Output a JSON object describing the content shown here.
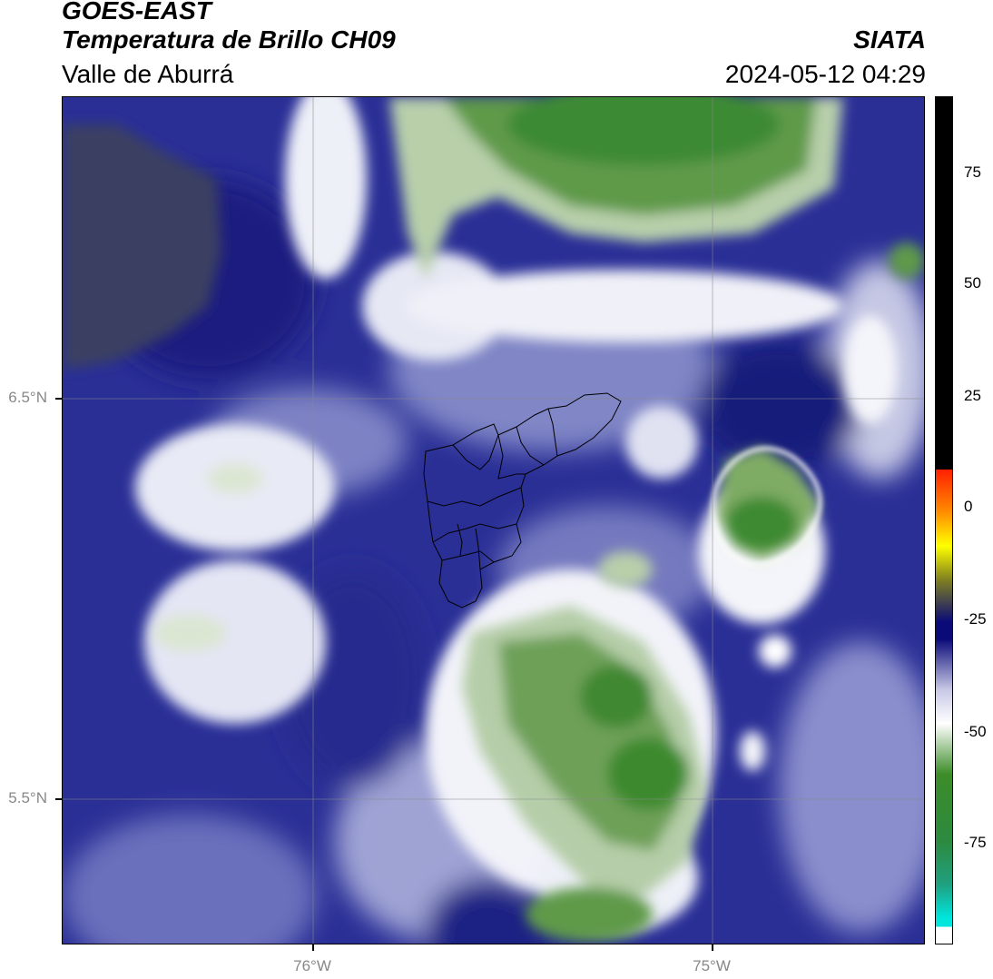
{
  "header": {
    "title_line1": "GOES-EAST",
    "title_line2": "Temperatura de Brillo CH09",
    "subtitle": "Valle de Aburrá",
    "organization": "SIATA",
    "timestamp": "2024-05-12 04:29"
  },
  "map": {
    "lat_labels": [
      "6.5°N",
      "5.5°N"
    ],
    "lon_labels": [
      "76°W",
      "75°W"
    ],
    "gridlines": true,
    "region_outline": "Valle de Aburrá municipalities"
  },
  "colorbar": {
    "ticks": [
      "75",
      "50",
      "25",
      "0",
      "-25",
      "-50",
      "-75"
    ],
    "colors": {
      "black": "#000000",
      "red": "#ff2000",
      "orange": "#ff8c00",
      "yellow": "#ffff00",
      "olive": "#808020",
      "navy": "#0a0a78",
      "lavender": "#c8c8e6",
      "white": "#ffffff",
      "green": "#3c8c28",
      "cyan": "#00e6dc"
    }
  }
}
